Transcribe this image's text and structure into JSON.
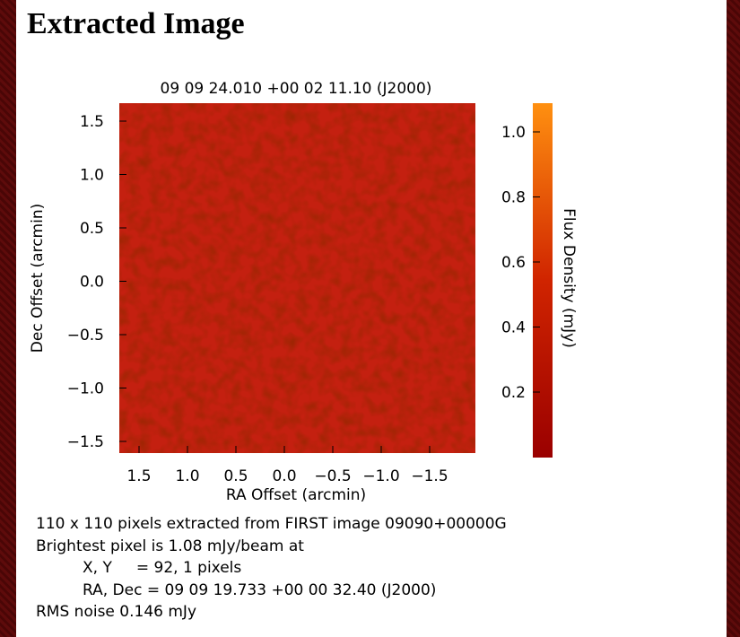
{
  "header": {
    "title": "Extracted Image"
  },
  "plot": {
    "title": "09 09 24.010 +00 02 11.10 (J2000)",
    "x_label": "RA Offset (arcmin)",
    "y_label": "Dec Offset (arcmin)",
    "colorbar_label": "Flux Density (mJy)",
    "x_ticks": [
      "1.5",
      "1.0",
      "0.5",
      "0.0",
      "−0.5",
      "−1.0",
      "−1.5"
    ],
    "y_ticks": [
      "1.5",
      "1.0",
      "0.5",
      "0.0",
      "−0.5",
      "−1.0",
      "−1.5"
    ],
    "colorbar_ticks": [
      "1.0",
      "0.8",
      "0.6",
      "0.4",
      "0.2"
    ]
  },
  "info": {
    "lines": [
      "110 x 110 pixels extracted from FIRST image 09090+00000G",
      "Brightest pixel is 1.08 mJy/beam at",
      "X, Y     = 92, 1 pixels",
      "RA, Dec = 09 09 19.733 +00 00 32.40 (J2000)",
      "RMS noise 0.146 mJy"
    ]
  }
}
